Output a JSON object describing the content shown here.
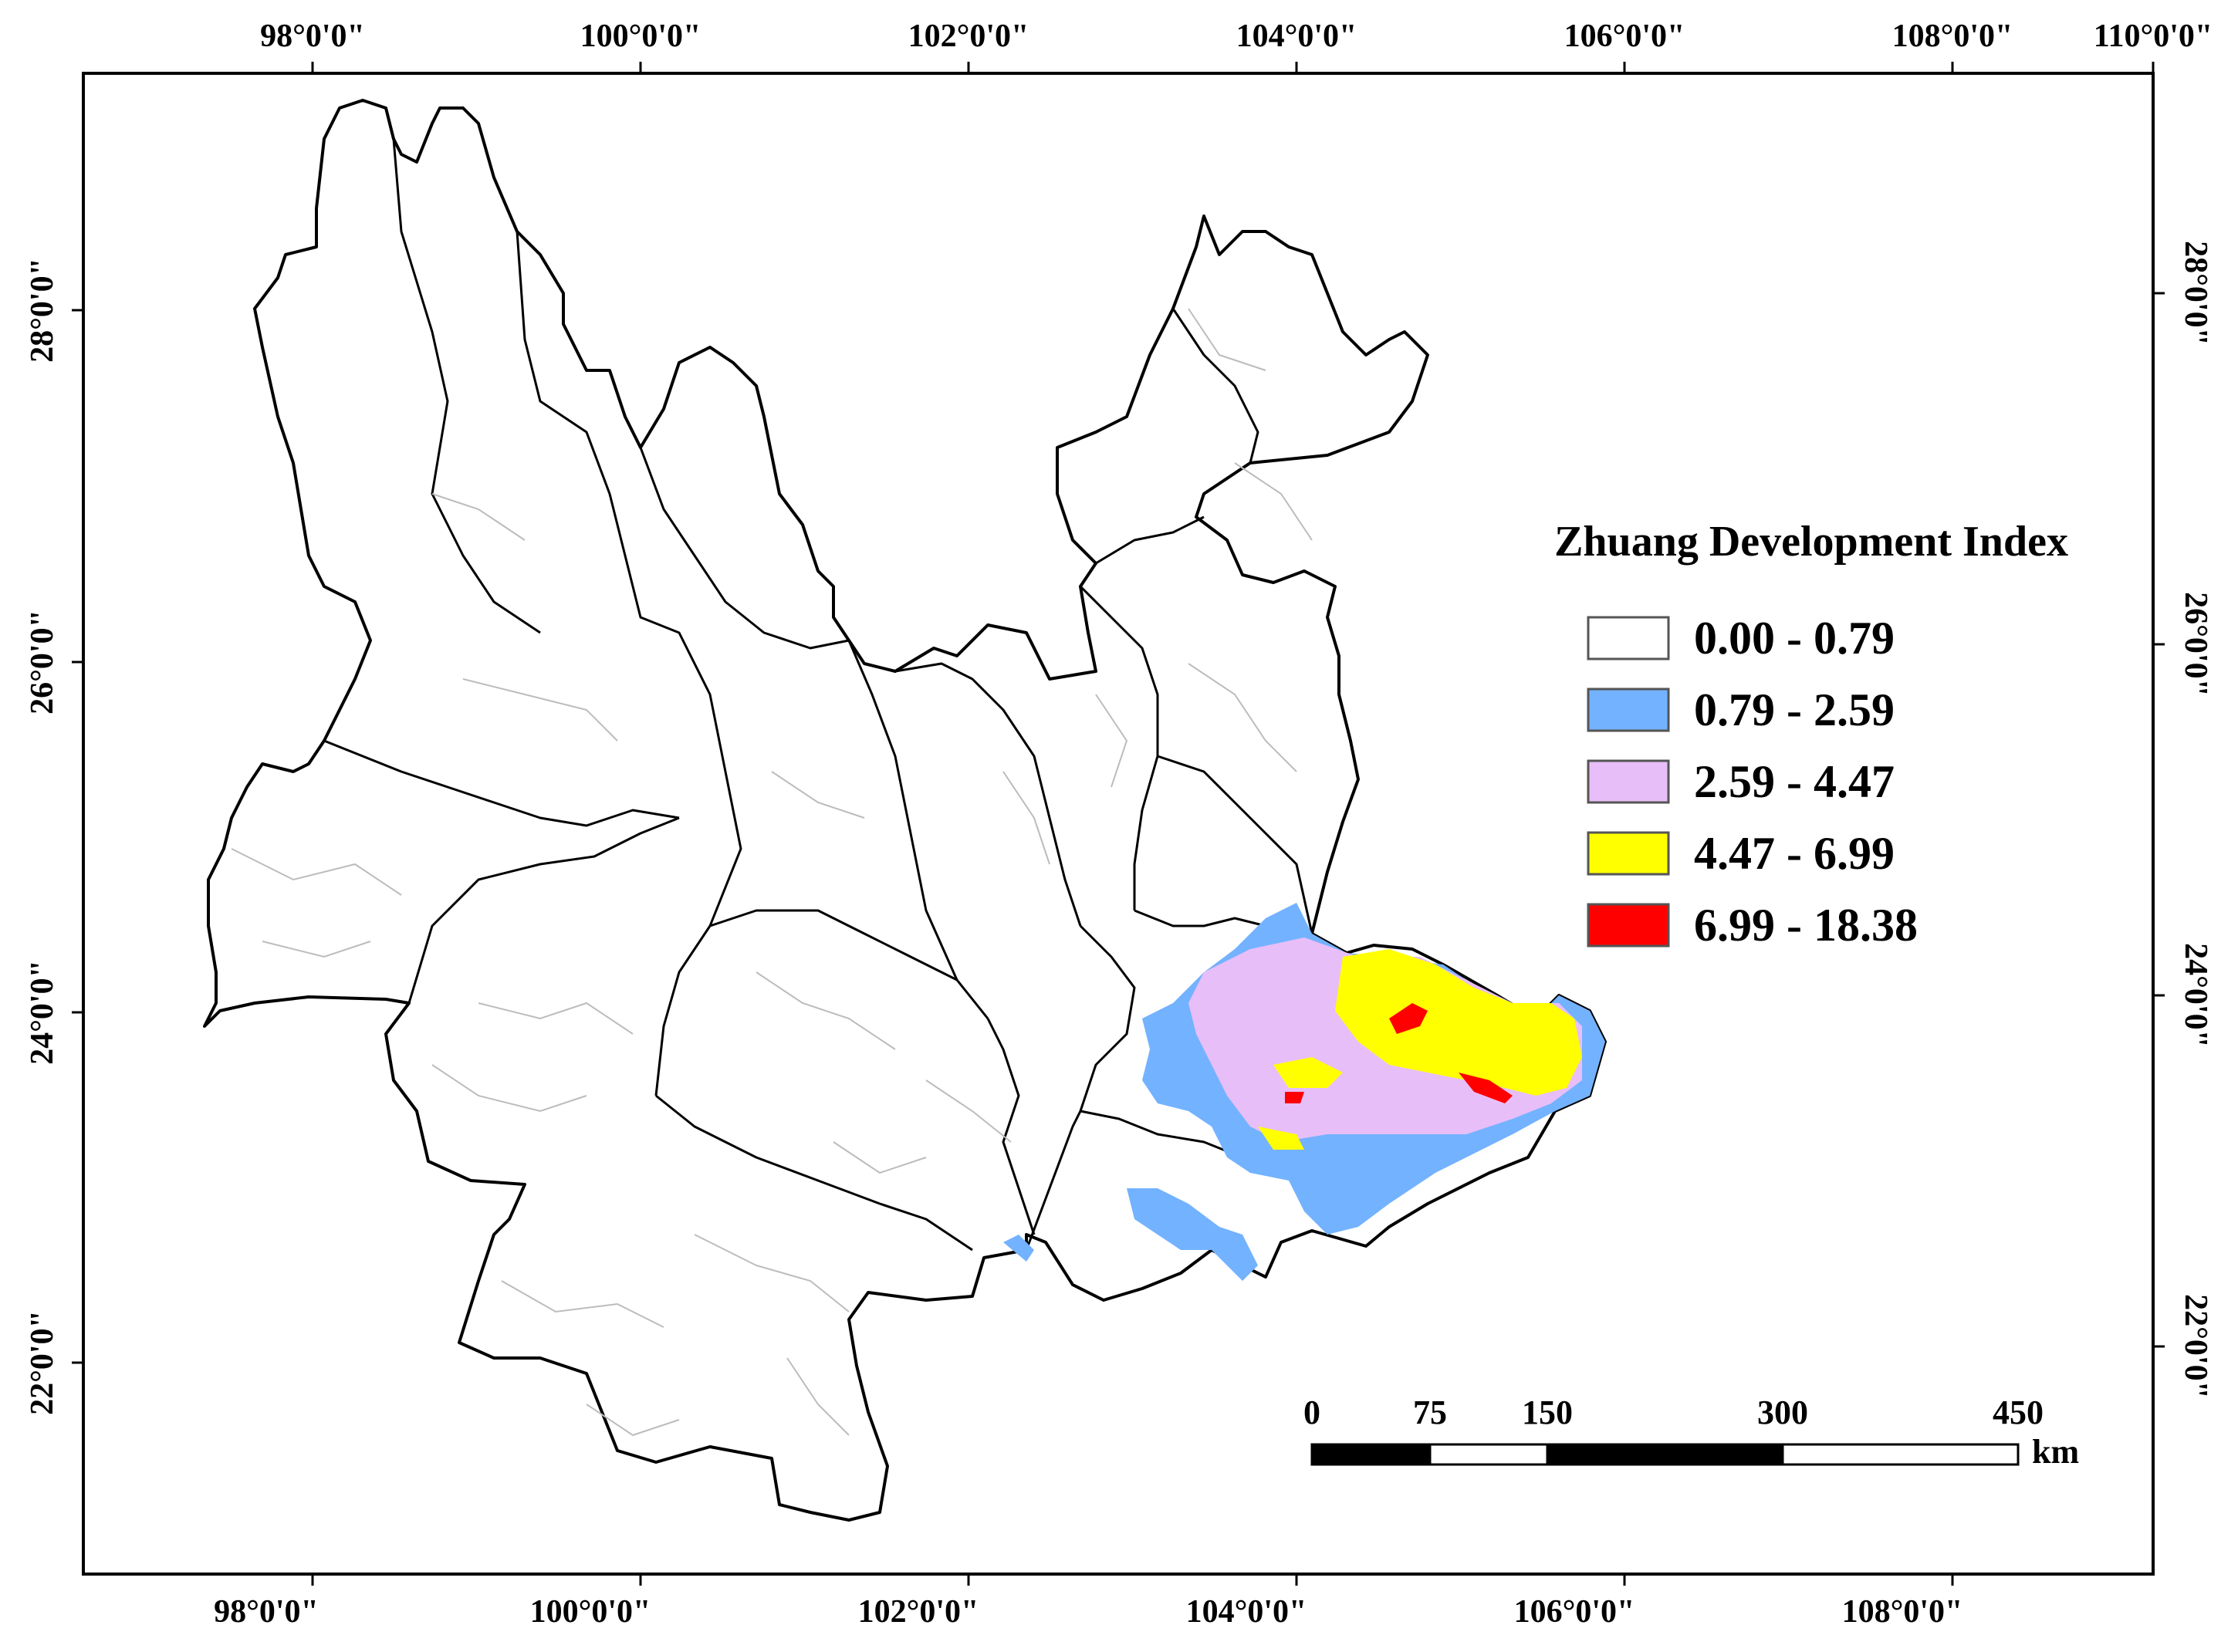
{
  "map": {
    "legend": {
      "title": "Zhuang Development Index",
      "classes": [
        {
          "label": "0.00 - 0.79",
          "color": "#ffffff"
        },
        {
          "label": "0.79 - 2.59",
          "color": "#73b2ff"
        },
        {
          "label": "2.59 - 4.47",
          "color": "#e8bef8"
        },
        {
          "label": "4.47 - 6.99",
          "color": "#ffff00"
        },
        {
          "label": "6.99 - 18.38",
          "color": "#ff0000"
        }
      ]
    },
    "top_ticks": [
      "98°0'0\"",
      "100°0'0\"",
      "102°0'0\"",
      "104°0'0\"",
      "106°0'0\"",
      "108°0'0\"",
      "110°0'0\""
    ],
    "bottom_ticks": [
      "98°0'0\"",
      "100°0'0\"",
      "102°0'0\"",
      "104°0'0\"",
      "106°0'0\"",
      "108°0'0\""
    ],
    "left_ticks": [
      "28°0'0\"",
      "26°0'0\"",
      "24°0'0\"",
      "22°0'0\""
    ],
    "right_ticks": [
      "28°0'0\"",
      "26°0'0\"",
      "24°0'0\"",
      "22°0'0\""
    ],
    "scale_bar": {
      "labels": [
        "0",
        "75",
        "150",
        "300",
        "450"
      ],
      "unit": "km"
    }
  }
}
